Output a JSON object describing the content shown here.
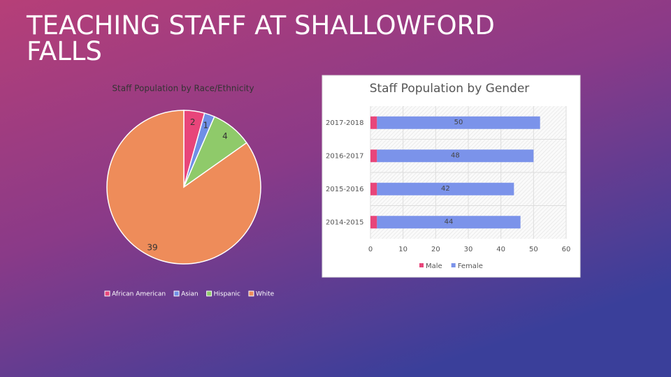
{
  "slide_title": "TEACHING STAFF AT SHALLOWFORD FALLS",
  "chart_data": [
    {
      "type": "pie",
      "title": "Staff Population by Race/Ethnicity",
      "categories": [
        "African American",
        "Asian",
        "Hispanic",
        "White"
      ],
      "values": [
        2,
        1,
        4,
        39
      ],
      "colors": [
        "#e8457a",
        "#6f8fe6",
        "#8fca6a",
        "#ee8c5a"
      ],
      "legend": "bottom"
    },
    {
      "type": "hbar_stacked",
      "title": "Staff Population by Gender",
      "categories": [
        "2017-2018",
        "2016-2017",
        "2015-2016",
        "2014-2015"
      ],
      "series": [
        {
          "name": "Male",
          "color": "#e8457a",
          "values": [
            2,
            2,
            2,
            2
          ]
        },
        {
          "name": "Female",
          "color": "#7b93ea",
          "values": [
            50,
            48,
            42,
            44
          ],
          "labels": true
        }
      ],
      "xlim": [
        0,
        60
      ],
      "xticks": [
        0,
        10,
        20,
        30,
        40,
        50,
        60
      ],
      "grid": true,
      "legend": "bottom"
    }
  ]
}
